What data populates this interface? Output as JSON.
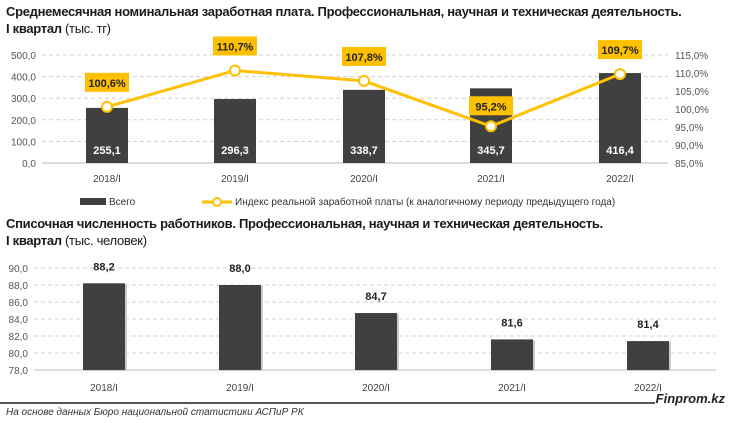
{
  "chart_data": [
    {
      "type": "bar+line",
      "title": "Среднемесячная номинальная заработная плата. Профессиональная, научная и техническая деятельность.",
      "title_line2": "I квартал",
      "unit": "(тыс. тг)",
      "categories": [
        "2018/I",
        "2019/I",
        "2020/I",
        "2021/I",
        "2022/I"
      ],
      "series": [
        {
          "name": "Всего",
          "type": "bar",
          "axis": "left",
          "color": "#404040",
          "values": [
            255.1,
            296.3,
            338.7,
            345.7,
            416.4
          ],
          "labels": [
            "255,1",
            "296,3",
            "338,7",
            "345,7",
            "416,4"
          ]
        },
        {
          "name": "Индекс реальной заработной платы (к аналогичному периоду предыдущего года)",
          "type": "line",
          "axis": "right",
          "color": "#FFC000",
          "values": [
            100.6,
            110.7,
            107.8,
            95.2,
            109.7
          ],
          "labels": [
            "100,6%",
            "110,7%",
            "107,8%",
            "95,2%",
            "109,7%"
          ]
        }
      ],
      "ylim": [
        0,
        500
      ],
      "yticks": [
        "0,0",
        "100,0",
        "200,0",
        "300,0",
        "400,0",
        "500,0"
      ],
      "y2lim": [
        85,
        115
      ],
      "y2ticks": [
        "85,0%",
        "90,0%",
        "95,0%",
        "100,0%",
        "105,0%",
        "110,0%",
        "115,0%"
      ],
      "grid": true,
      "legend": "bottom"
    },
    {
      "type": "bar",
      "title": "Списочная численность работников. Профессиональная, научная и техническая деятельность.",
      "title_line2": "I квартал",
      "unit": "(тыс. человек)",
      "categories": [
        "2018/I",
        "2019/I",
        "2020/I",
        "2021/I",
        "2022/I"
      ],
      "values": [
        88.2,
        88.0,
        84.7,
        81.6,
        81.4
      ],
      "labels": [
        "88,2",
        "88,0",
        "84,7",
        "81,6",
        "81,4"
      ],
      "color": "#404040",
      "ylim": [
        78,
        90
      ],
      "yticks": [
        "78,0",
        "80,0",
        "82,0",
        "84,0",
        "86,0",
        "88,0",
        "90,0"
      ],
      "grid": true
    }
  ],
  "footer": {
    "source": "На основе данных Бюро национальной статистики АСПиР РК",
    "brand": "Finprom.kz"
  }
}
